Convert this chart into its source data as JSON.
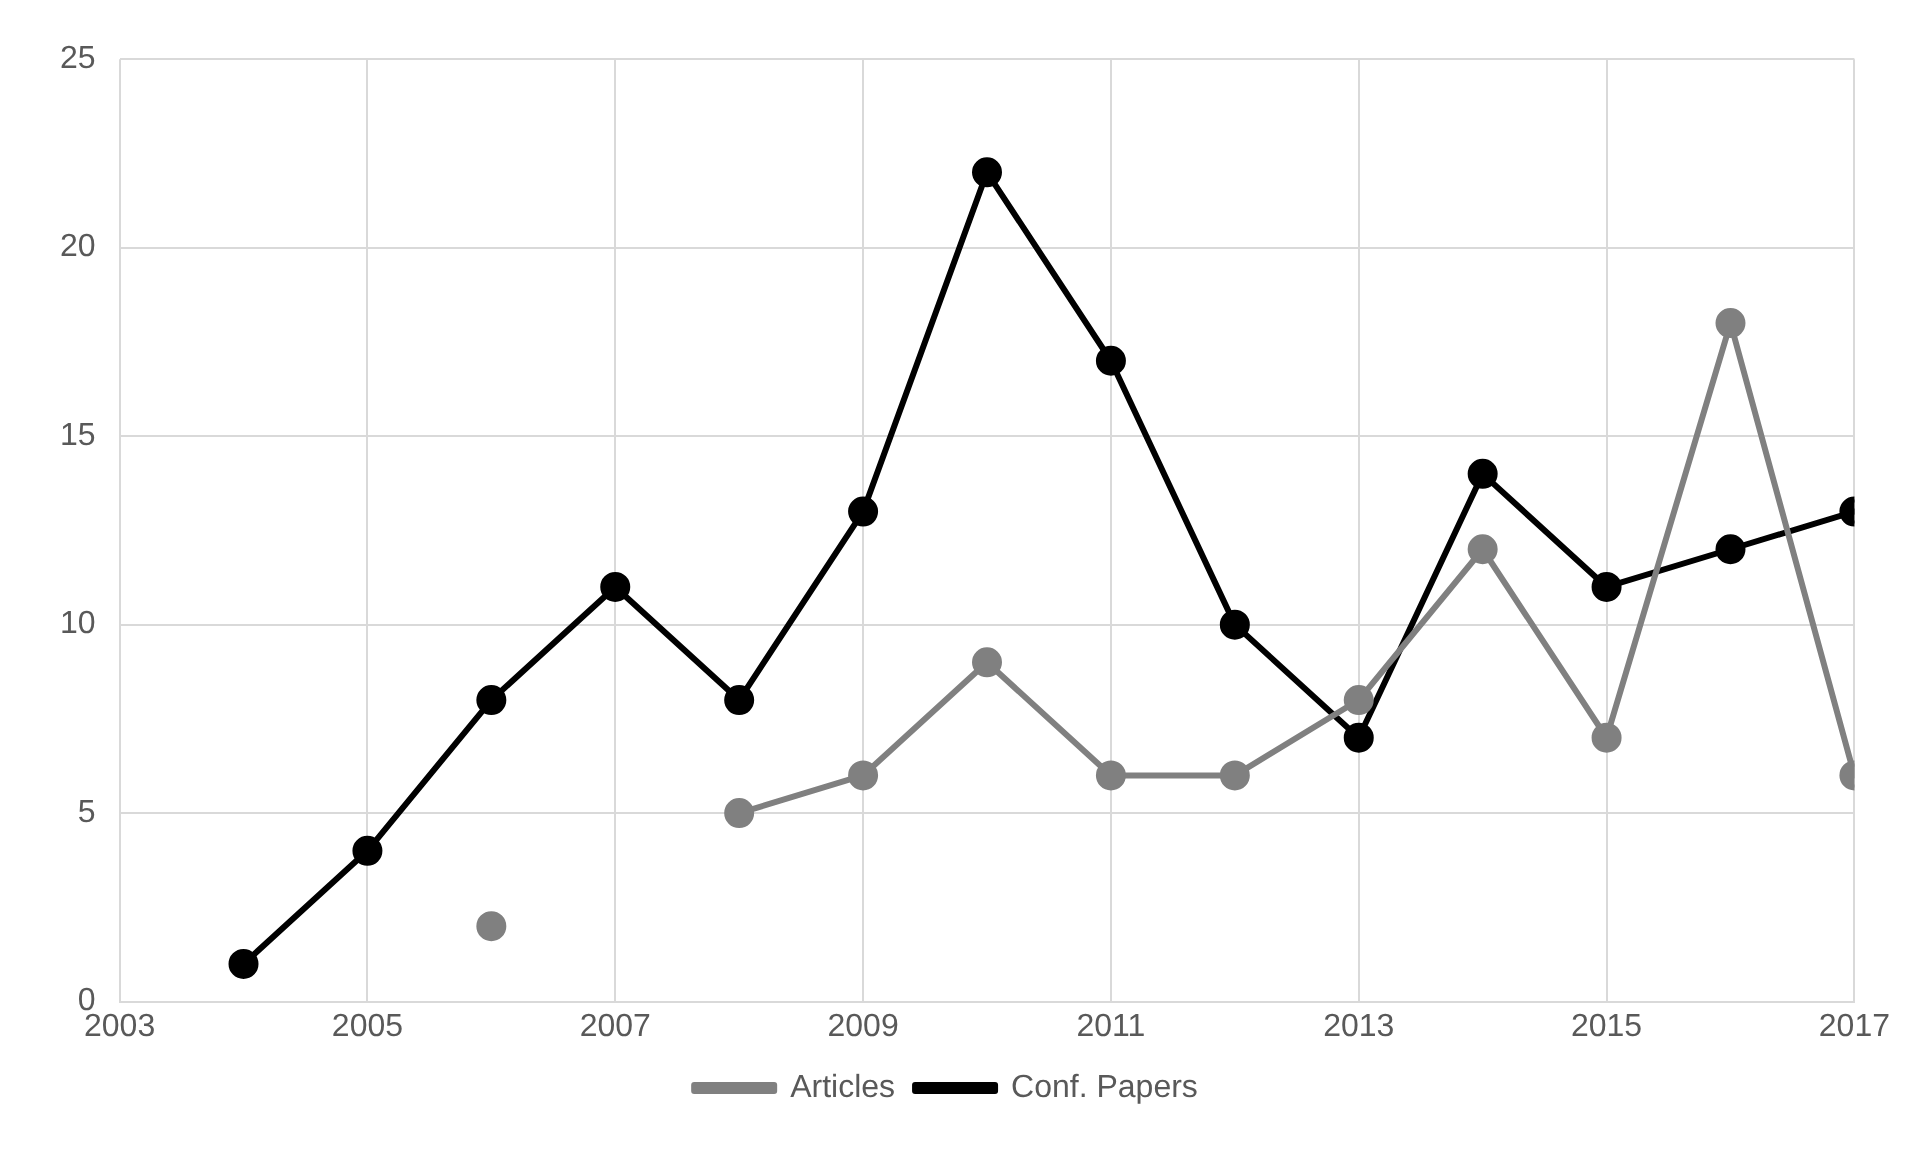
{
  "chart_data": {
    "type": "line",
    "x": [
      2004,
      2005,
      2006,
      2007,
      2008,
      2009,
      2010,
      2011,
      2012,
      2013,
      2014,
      2015,
      2016,
      2017
    ],
    "series": [
      {
        "name": "Articles",
        "color": "#808080",
        "values": [
          null,
          null,
          2,
          null,
          5,
          6,
          9,
          6,
          6,
          8,
          12,
          7,
          18,
          6
        ]
      },
      {
        "name": "Conf. Papers",
        "color": "#000000",
        "values": [
          1,
          4,
          8,
          11,
          8,
          13,
          22,
          17,
          10,
          7,
          14,
          11,
          12,
          13
        ]
      }
    ],
    "xlim": [
      2003,
      2017
    ],
    "xticks": [
      2003,
      2005,
      2007,
      2009,
      2011,
      2013,
      2015,
      2017
    ],
    "ylim": [
      0,
      25
    ],
    "yticks": [
      0,
      5,
      10,
      15,
      20,
      25
    ],
    "grid": true,
    "legend": "bottom",
    "marker": "circle",
    "line_style": "solid"
  }
}
